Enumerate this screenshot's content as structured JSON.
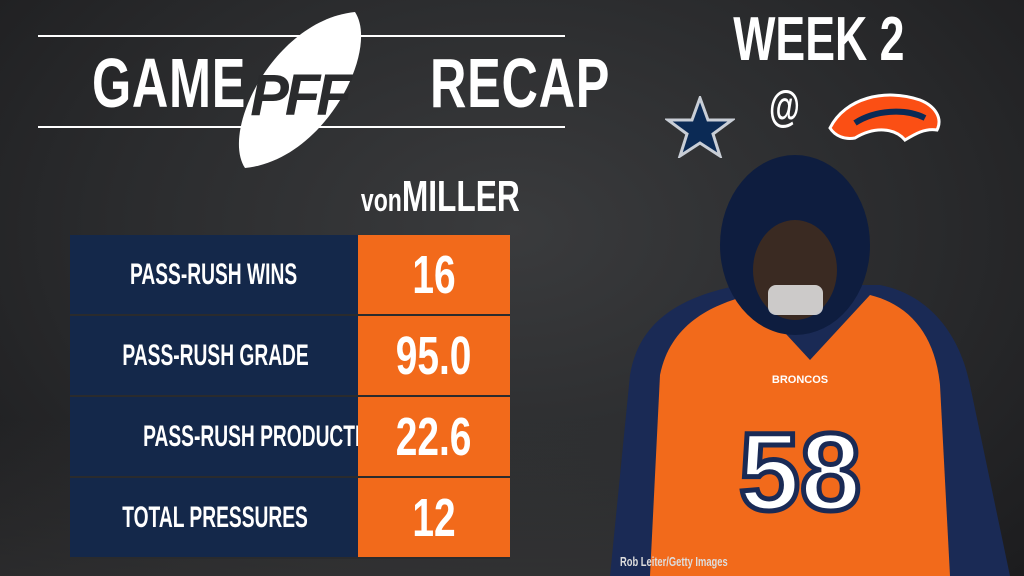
{
  "header": {
    "left": "GAME",
    "logo": "PFF",
    "right": "RECAP"
  },
  "matchup": {
    "week": "WEEK 2",
    "at": "@",
    "away_team_icon": "cowboys-star-icon",
    "home_team_icon": "broncos-horse-icon"
  },
  "player": {
    "first": "von",
    "last": "MILLER",
    "jersey": "58",
    "jersey_text": "BRONCOS"
  },
  "stats": [
    {
      "label": "PASS-RUSH WINS",
      "value": "16"
    },
    {
      "label": "PASS-RUSH GRADE",
      "value": "95.0"
    },
    {
      "label": "PASS-RUSH PRODUCTIVITY",
      "value": "22.6"
    },
    {
      "label": "TOTAL PRESSURES",
      "value": "12"
    }
  ],
  "credit": "Rob Leiter/Getty Images",
  "colors": {
    "navy": "#14284a",
    "orange": "#f26a1b",
    "background": "#2a2b2d"
  }
}
